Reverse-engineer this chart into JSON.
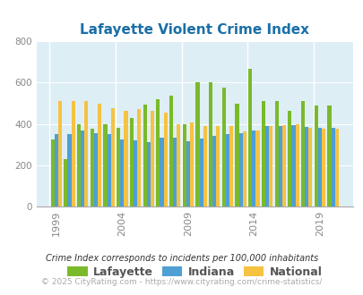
{
  "title": "Lafayette Violent Crime Index",
  "years": [
    1999,
    2000,
    2001,
    2002,
    2003,
    2004,
    2005,
    2006,
    2007,
    2008,
    2009,
    2010,
    2011,
    2012,
    2013,
    2014,
    2015,
    2016,
    2017,
    2018,
    2019,
    2020
  ],
  "lafayette": [
    325,
    230,
    400,
    375,
    400,
    380,
    430,
    495,
    520,
    535,
    400,
    600,
    600,
    575,
    500,
    665,
    510,
    510,
    465,
    510,
    490,
    490
  ],
  "indiana": [
    350,
    350,
    370,
    355,
    350,
    325,
    320,
    310,
    335,
    335,
    315,
    330,
    340,
    350,
    355,
    370,
    390,
    390,
    395,
    385,
    380,
    380
  ],
  "national": [
    510,
    510,
    510,
    500,
    475,
    465,
    470,
    465,
    455,
    400,
    405,
    390,
    390,
    390,
    365,
    370,
    390,
    395,
    400,
    380,
    375,
    375
  ],
  "lafayette_color": "#7aba2a",
  "indiana_color": "#4f9fd4",
  "national_color": "#f5c242",
  "bg_color": "#deeef5",
  "ylim": [
    0,
    800
  ],
  "yticks": [
    0,
    200,
    400,
    600,
    800
  ],
  "xlabel_years": [
    1999,
    2004,
    2009,
    2014,
    2019
  ],
  "footnote1": "Crime Index corresponds to incidents per 100,000 inhabitants",
  "footnote2": "© 2025 CityRating.com - https://www.cityrating.com/crime-statistics/",
  "bar_width": 0.28,
  "legend_labels": [
    "Lafayette",
    "Indiana",
    "National"
  ]
}
